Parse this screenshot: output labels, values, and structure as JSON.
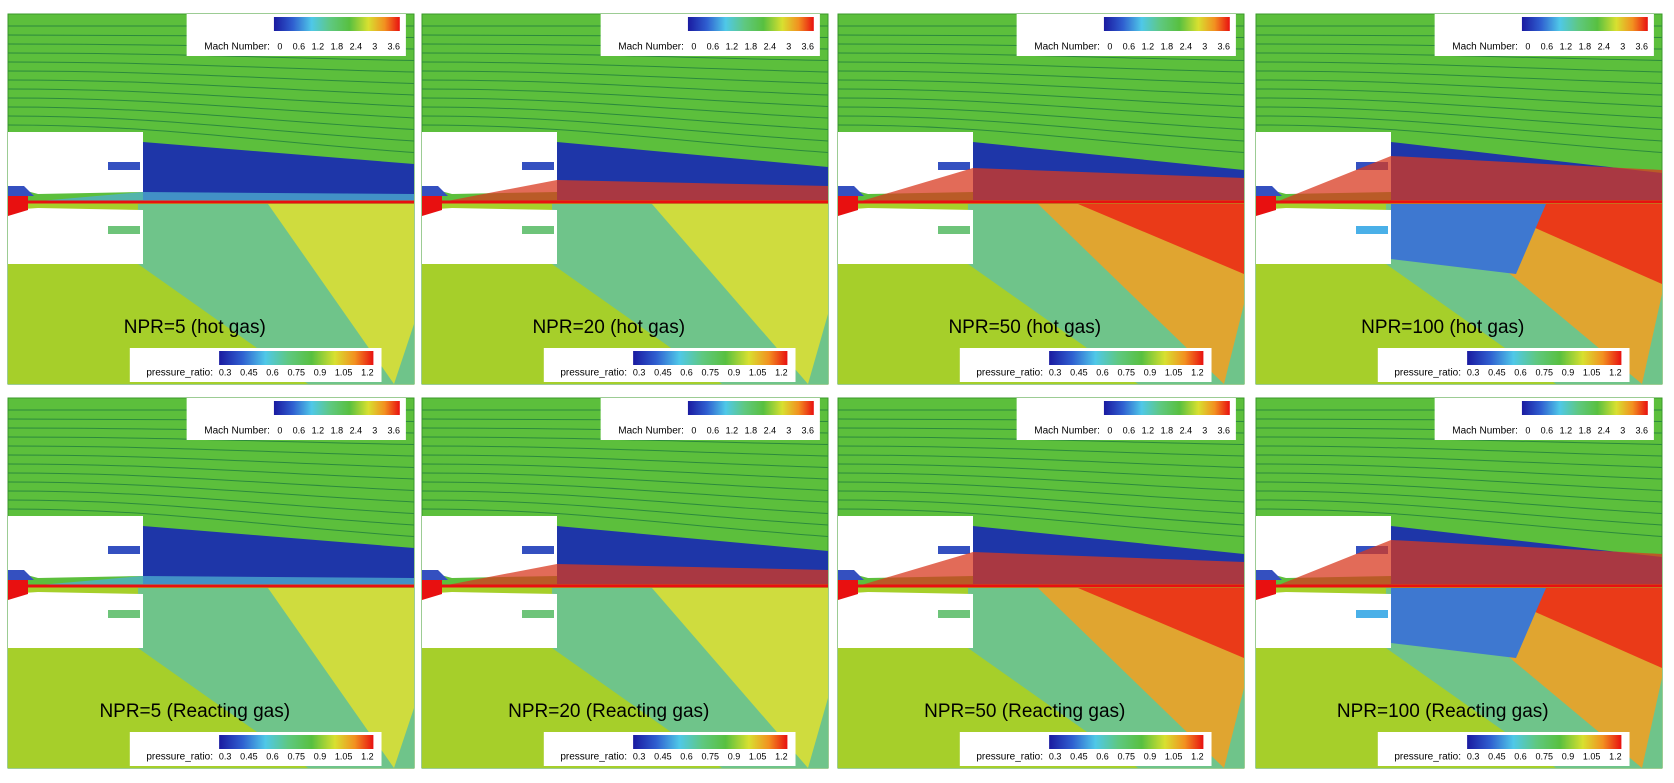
{
  "panels": [
    {
      "label": "NPR=5 (hot gas)"
    },
    {
      "label": "NPR=20 (hot gas)"
    },
    {
      "label": "NPR=50 (hot gas)"
    },
    {
      "label": "NPR=100 (hot gas)"
    },
    {
      "label": "NPR=5 (Reacting gas)"
    },
    {
      "label": "NPR=20 (Reacting gas)"
    },
    {
      "label": "NPR=50 (Reacting gas)"
    },
    {
      "label": "NPR=100 (Reacting gas)"
    }
  ],
  "mach_legend": {
    "title": "Mach Number:",
    "ticks": [
      0,
      0.6,
      1.2,
      1.8,
      2.4,
      3,
      3.6
    ]
  },
  "pressure_legend": {
    "title": "pressure_ratio:",
    "ticks": [
      0.3,
      0.45,
      0.6,
      0.75,
      0.9,
      1.05,
      1.2
    ]
  }
}
